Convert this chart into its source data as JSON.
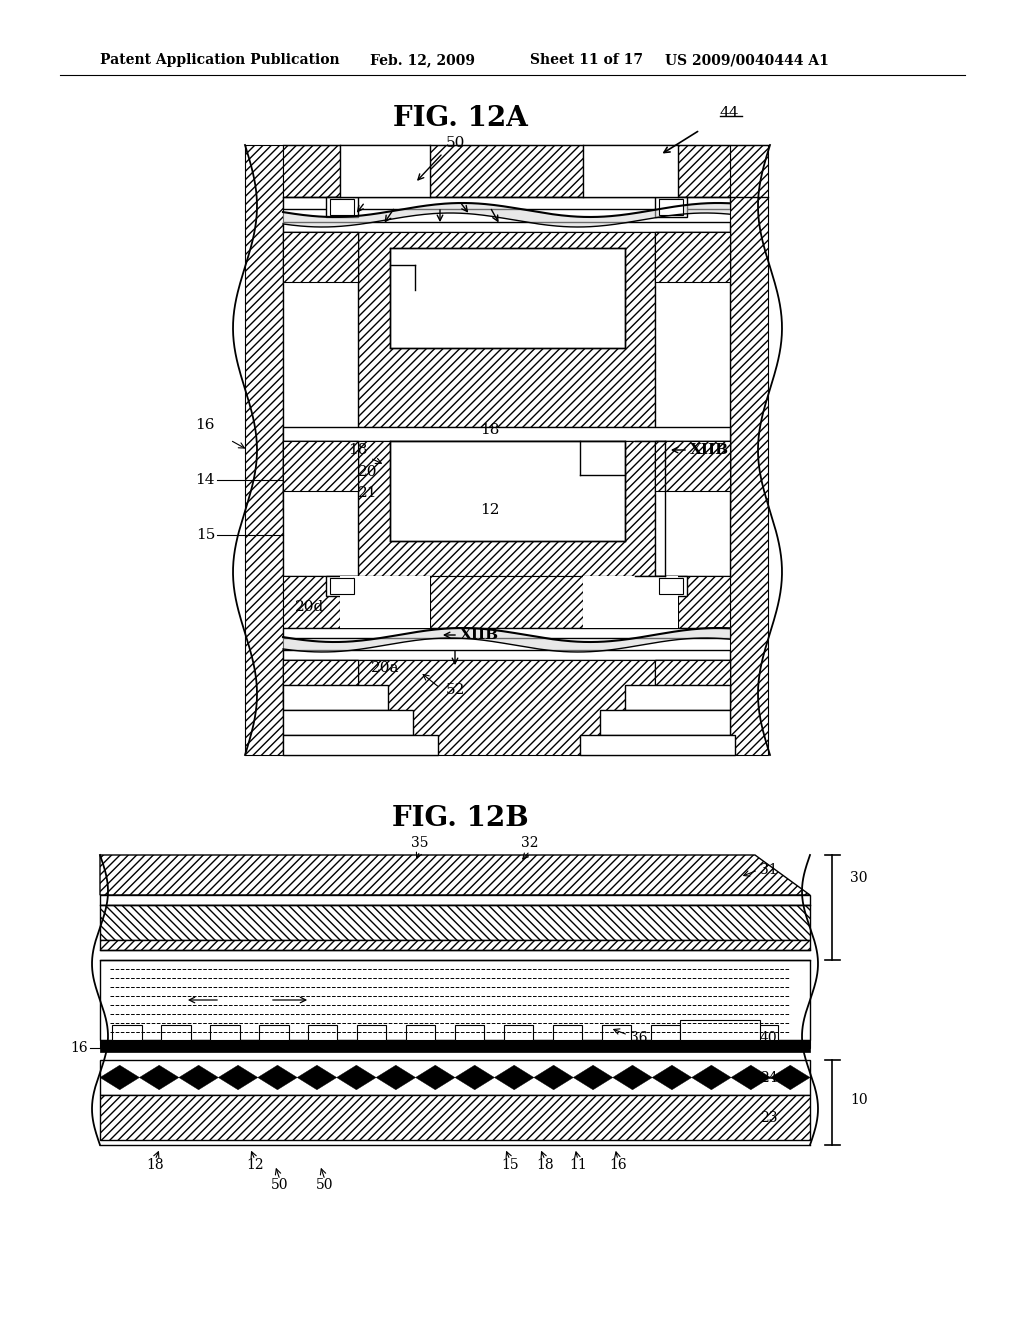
{
  "header_left": "Patent Application Publication",
  "header_mid1": "Feb. 12, 2009",
  "header_mid2": "Sheet 11 of 17",
  "header_right": "US 2009/0040444 A1",
  "fig12a_title": "FIG. 12A",
  "fig12b_title": "FIG. 12B",
  "bg_color": "#ffffff"
}
